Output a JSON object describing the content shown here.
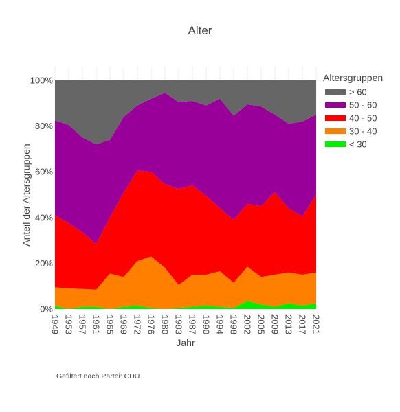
{
  "chart_data": {
    "type": "area",
    "stacked": true,
    "normalized": true,
    "title": "Alter",
    "xlabel": "Jahr",
    "ylabel": "Anteil der Altersgruppen",
    "legend_title": "Altersgruppen",
    "legend_position": "top-right",
    "footnote": "Gefiltert nach Partei: CDU",
    "x": [
      1949,
      1953,
      1957,
      1961,
      1965,
      1969,
      1972,
      1976,
      1980,
      1983,
      1987,
      1990,
      1994,
      1998,
      2002,
      2005,
      2009,
      2013,
      2017,
      2021
    ],
    "y_ticks": [
      "0%",
      "20%",
      "40%",
      "60%",
      "80%",
      "100%"
    ],
    "ylim": [
      0,
      100
    ],
    "series": [
      {
        "name": "< 30",
        "color": "#00ee00",
        "values": [
          1.5,
          0.0,
          1.0,
          1.0,
          0.0,
          1.0,
          1.5,
          0.5,
          0.0,
          0.5,
          1.0,
          1.5,
          1.0,
          0.5,
          3.5,
          2.0,
          1.0,
          2.5,
          1.5,
          2.5
        ]
      },
      {
        "name": "30 - 40",
        "color": "#ff8000",
        "values": [
          8.0,
          9.0,
          7.8,
          7.5,
          15.5,
          13.0,
          19.5,
          22.5,
          18.0,
          10.0,
          14.0,
          13.5,
          15.5,
          11.0,
          15.0,
          12.0,
          14.0,
          13.5,
          13.5,
          13.5
        ]
      },
      {
        "name": "40 - 50",
        "color": "#ff0000",
        "values": [
          31.5,
          28.5,
          24.7,
          20.0,
          24.5,
          37.0,
          39.5,
          37.0,
          36.5,
          42.0,
          39.0,
          34.5,
          27.5,
          27.5,
          27.5,
          31.0,
          36.0,
          28.0,
          25.5,
          34.0
        ]
      },
      {
        "name": "50 - 60",
        "color": "#990099",
        "values": [
          41.5,
          43.0,
          41.5,
          43.5,
          34.0,
          33.0,
          28.5,
          32.0,
          40.0,
          38.0,
          37.0,
          39.5,
          48.0,
          45.5,
          43.5,
          43.5,
          34.0,
          37.0,
          41.5,
          35.0
        ]
      },
      {
        "name": "> 60",
        "color": "#666666",
        "values": [
          17.5,
          19.5,
          25.0,
          28.0,
          26.0,
          16.0,
          11.0,
          8.0,
          5.5,
          9.5,
          9.0,
          11.0,
          8.0,
          15.5,
          10.5,
          11.5,
          15.0,
          19.0,
          18.0,
          15.0
        ]
      }
    ],
    "grid": true
  }
}
